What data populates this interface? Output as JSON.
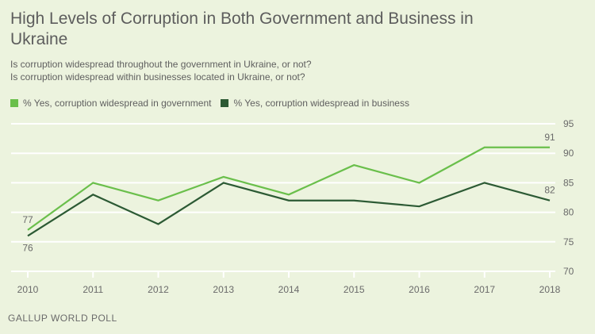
{
  "header": {
    "title": "High Levels of Corruption in Both Government and Business in Ukraine",
    "subtitle_1": "Is corruption widespread throughout the government in Ukraine, or not?",
    "subtitle_2": "Is corruption widespread within businesses located in Ukraine, or not?"
  },
  "footer": {
    "source": "GALLUP WORLD POLL"
  },
  "chart_data": {
    "type": "line",
    "title": "High Levels of Corruption in Both Government and Business in Ukraine",
    "x": [
      "2010",
      "2011",
      "2012",
      "2013",
      "2014",
      "2015",
      "2016",
      "2017",
      "2018"
    ],
    "series": [
      {
        "name": "% Yes, corruption widespread in government",
        "color": "#6abf4b",
        "values": [
          77,
          85,
          82,
          86,
          83,
          88,
          85,
          91,
          91
        ]
      },
      {
        "name": "% Yes, corruption widespread in business",
        "color": "#2c5a34",
        "values": [
          76,
          83,
          78,
          85,
          82,
          82,
          81,
          85,
          82
        ]
      }
    ],
    "ylim": [
      70,
      95
    ],
    "yticks": [
      70,
      75,
      80,
      85,
      90,
      95
    ],
    "y_axis_side": "right",
    "grid": true,
    "legend": "top-left",
    "annotations": [
      {
        "series": 0,
        "index": 0,
        "label": "77"
      },
      {
        "series": 1,
        "index": 0,
        "label": "76"
      },
      {
        "series": 0,
        "index": 8,
        "label": "91"
      },
      {
        "series": 1,
        "index": 8,
        "label": "82"
      }
    ],
    "xlabel": "",
    "ylabel": ""
  }
}
